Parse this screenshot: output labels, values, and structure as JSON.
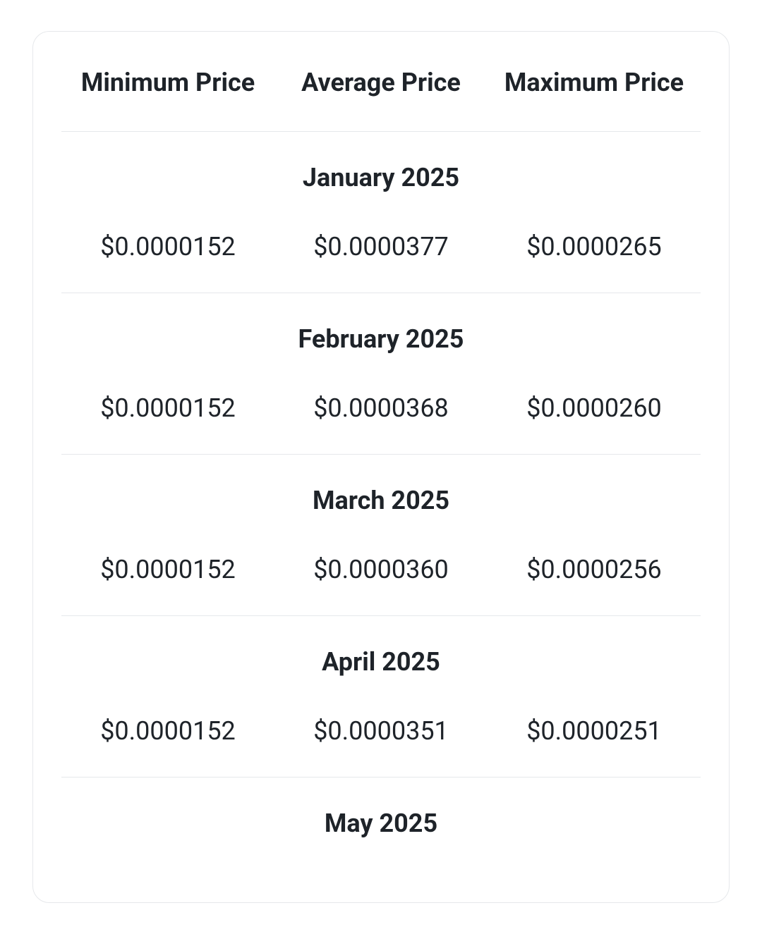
{
  "table": {
    "type": "table",
    "columns": [
      "Minimum Price",
      "Average Price",
      "Maximum Price"
    ],
    "column_count": 3,
    "header_fontsize": 36,
    "header_fontweight": 700,
    "cell_fontsize": 36,
    "cell_fontweight": 400,
    "month_fontsize": 36,
    "month_fontweight": 700,
    "text_color": "#1e2329",
    "border_color": "#e6e8eb",
    "background_color": "#ffffff",
    "card_border_radius": 24,
    "groups": [
      {
        "month": "January 2025",
        "min": "$0.0000152",
        "avg": "$0.0000377",
        "max": "$0.0000265"
      },
      {
        "month": "February 2025",
        "min": "$0.0000152",
        "avg": "$0.0000368",
        "max": "$0.0000260"
      },
      {
        "month": "March 2025",
        "min": "$0.0000152",
        "avg": "$0.0000360",
        "max": "$0.0000256"
      },
      {
        "month": "April 2025",
        "min": "$0.0000152",
        "avg": "$0.0000351",
        "max": "$0.0000251"
      },
      {
        "month": "May 2025",
        "min": "",
        "avg": "",
        "max": ""
      }
    ]
  }
}
